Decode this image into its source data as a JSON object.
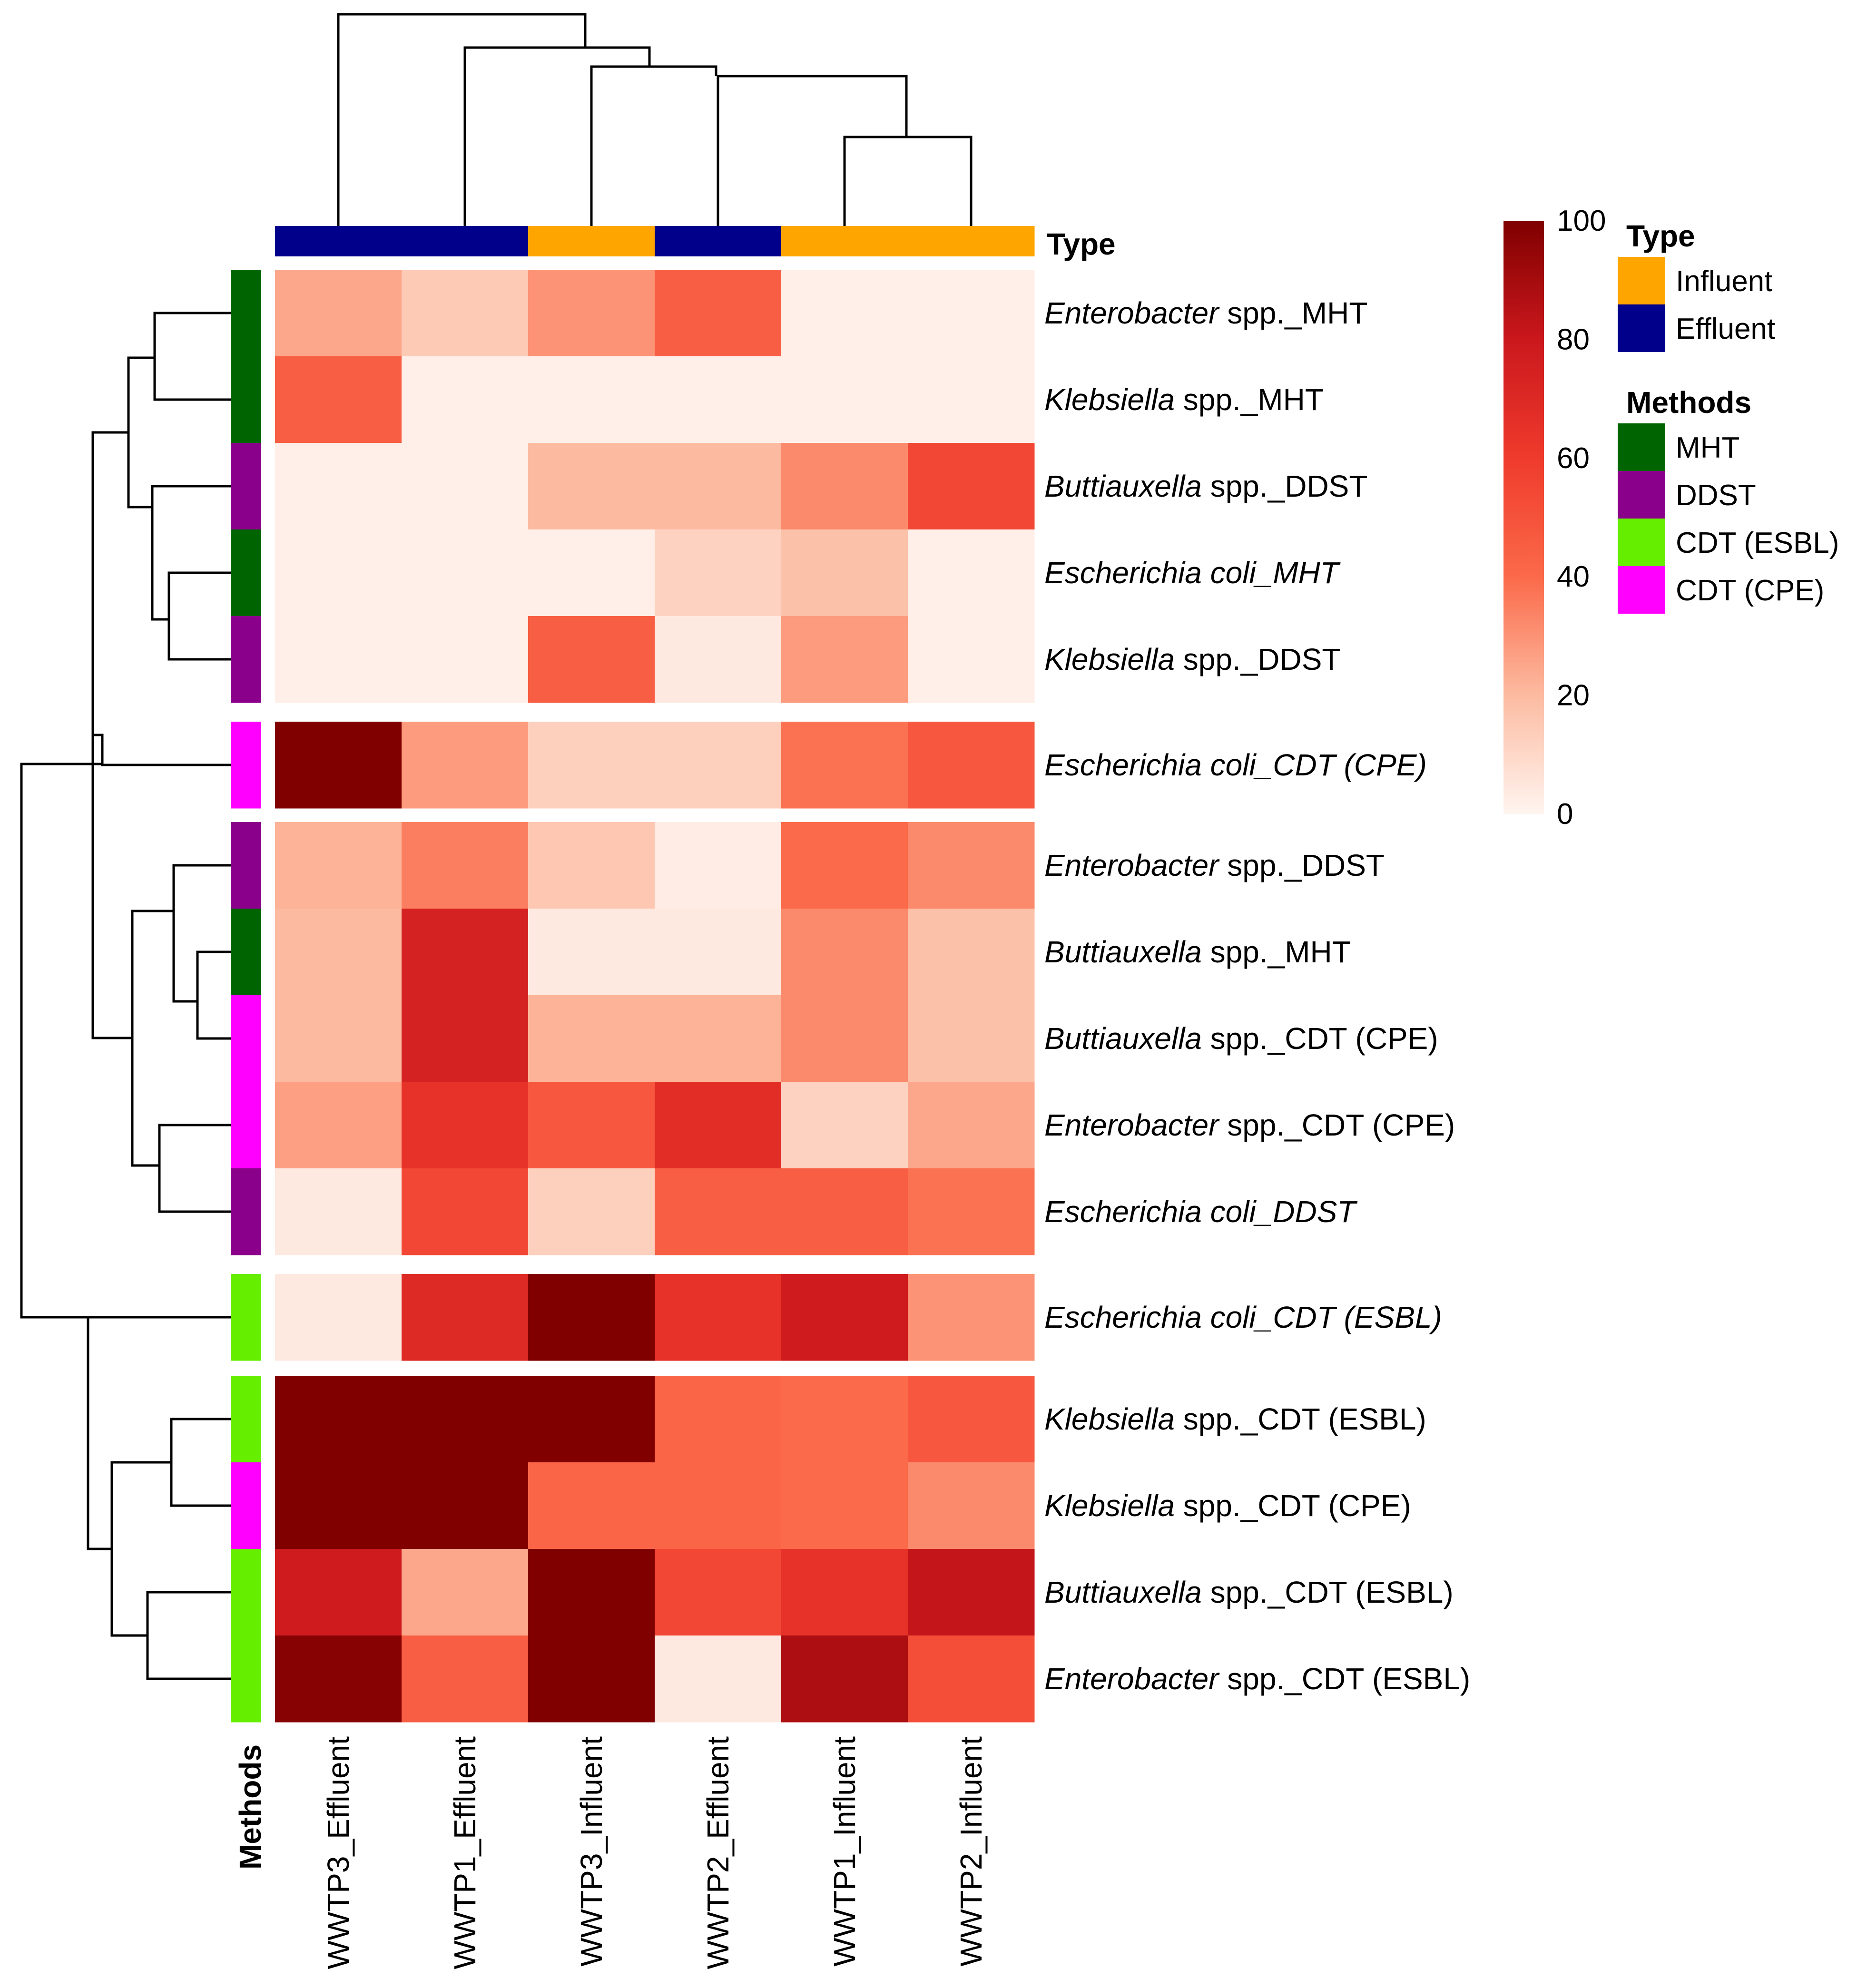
{
  "chart_data": {
    "type": "heatmap",
    "columns": [
      "WWTP3_Effluent",
      "WWTP1_Effluent",
      "WWTP3_Influent",
      "WWTP2_Effluent",
      "WWTP1_Influent",
      "WWTP2_Influent"
    ],
    "column_type": [
      "Effluent",
      "Effluent",
      "Influent",
      "Effluent",
      "Influent",
      "Influent"
    ],
    "rows": [
      {
        "genus": "Enterobacter",
        "suffix": " spp._MHT",
        "method": "MHT",
        "group": 0
      },
      {
        "genus": "Klebsiella",
        "suffix": " spp._MHT",
        "method": "MHT",
        "group": 0
      },
      {
        "genus": "Buttiauxella",
        "suffix": " spp._DDST",
        "method": "DDST",
        "group": 0
      },
      {
        "genus": "Escherichia coli_MHT",
        "suffix": "",
        "method": "MHT",
        "group": 0
      },
      {
        "genus": "Klebsiella",
        "suffix": " spp._DDST",
        "method": "DDST",
        "group": 0
      },
      {
        "genus": "Escherichia coli_CDT (CPE)",
        "suffix": "",
        "method": "CDT (CPE)",
        "group": 1
      },
      {
        "genus": "Enterobacter",
        "suffix": " spp._DDST",
        "method": "DDST",
        "group": 2
      },
      {
        "genus": "Buttiauxella",
        "suffix": " spp._MHT",
        "method": "MHT",
        "group": 2
      },
      {
        "genus": "Buttiauxella",
        "suffix": " spp._CDT (CPE)",
        "method": "CDT (CPE)",
        "group": 2
      },
      {
        "genus": "Enterobacter",
        "suffix": " spp._CDT (CPE)",
        "method": "CDT (CPE)",
        "group": 2
      },
      {
        "genus": "Escherichia coli_DDST",
        "suffix": "",
        "method": "DDST",
        "group": 2
      },
      {
        "genus": "Escherichia coli_CDT (ESBL)",
        "suffix": "",
        "method": "CDT (ESBL)",
        "group": 3
      },
      {
        "genus": "Klebsiella",
        "suffix": " spp._CDT (ESBL)",
        "method": "CDT (ESBL)",
        "group": 4
      },
      {
        "genus": "Klebsiella",
        "suffix": " spp._CDT (CPE)",
        "method": "CDT (CPE)",
        "group": 4
      },
      {
        "genus": "Buttiauxella",
        "suffix": " spp._CDT (ESBL)",
        "method": "CDT (ESBL)",
        "group": 4
      },
      {
        "genus": "Enterobacter",
        "suffix": " spp._CDT (ESBL)",
        "method": "CDT (ESBL)",
        "group": 4
      }
    ],
    "values": [
      [
        25,
        15,
        30,
        45,
        2,
        2
      ],
      [
        45,
        2,
        2,
        2,
        2,
        2
      ],
      [
        2,
        2,
        20,
        20,
        32,
        55
      ],
      [
        2,
        2,
        2,
        12,
        18,
        2
      ],
      [
        2,
        2,
        45,
        4,
        28,
        2
      ],
      [
        100,
        28,
        13,
        13,
        38,
        48
      ],
      [
        22,
        35,
        16,
        3,
        40,
        32
      ],
      [
        20,
        75,
        4,
        4,
        32,
        18
      ],
      [
        20,
        75,
        22,
        22,
        32,
        18
      ],
      [
        27,
        65,
        48,
        68,
        12,
        25
      ],
      [
        4,
        55,
        13,
        45,
        45,
        38
      ],
      [
        4,
        70,
        100,
        65,
        78,
        30
      ],
      [
        100,
        100,
        100,
        42,
        40,
        48
      ],
      [
        100,
        100,
        42,
        42,
        40,
        32
      ],
      [
        78,
        25,
        100,
        55,
        65,
        82
      ],
      [
        98,
        45,
        100,
        4,
        88,
        52
      ]
    ],
    "scale": {
      "min": 0,
      "max": 100,
      "ticks": [
        0,
        20,
        40,
        60,
        80,
        100
      ]
    },
    "annotations": {
      "type_title": "Type",
      "methods_title": "Methods"
    }
  },
  "legend": {
    "type_title": "Type",
    "type_items": [
      {
        "label": "Influent",
        "color": "#ffa500"
      },
      {
        "label": "Effluent",
        "color": "#00008b"
      }
    ],
    "methods_title": "Methods",
    "methods_items": [
      {
        "label": "MHT",
        "color": "#006400"
      },
      {
        "label": "DDST",
        "color": "#8b008b"
      },
      {
        "label": "CDT (ESBL)",
        "color": "#66ee00"
      },
      {
        "label": "CDT (CPE)",
        "color": "#ff00ff"
      }
    ]
  },
  "colors": {
    "scale": [
      "#fff5f0",
      "#fcbba1",
      "#fb6a4a",
      "#ef3b2c",
      "#cb181d",
      "#800000"
    ]
  }
}
